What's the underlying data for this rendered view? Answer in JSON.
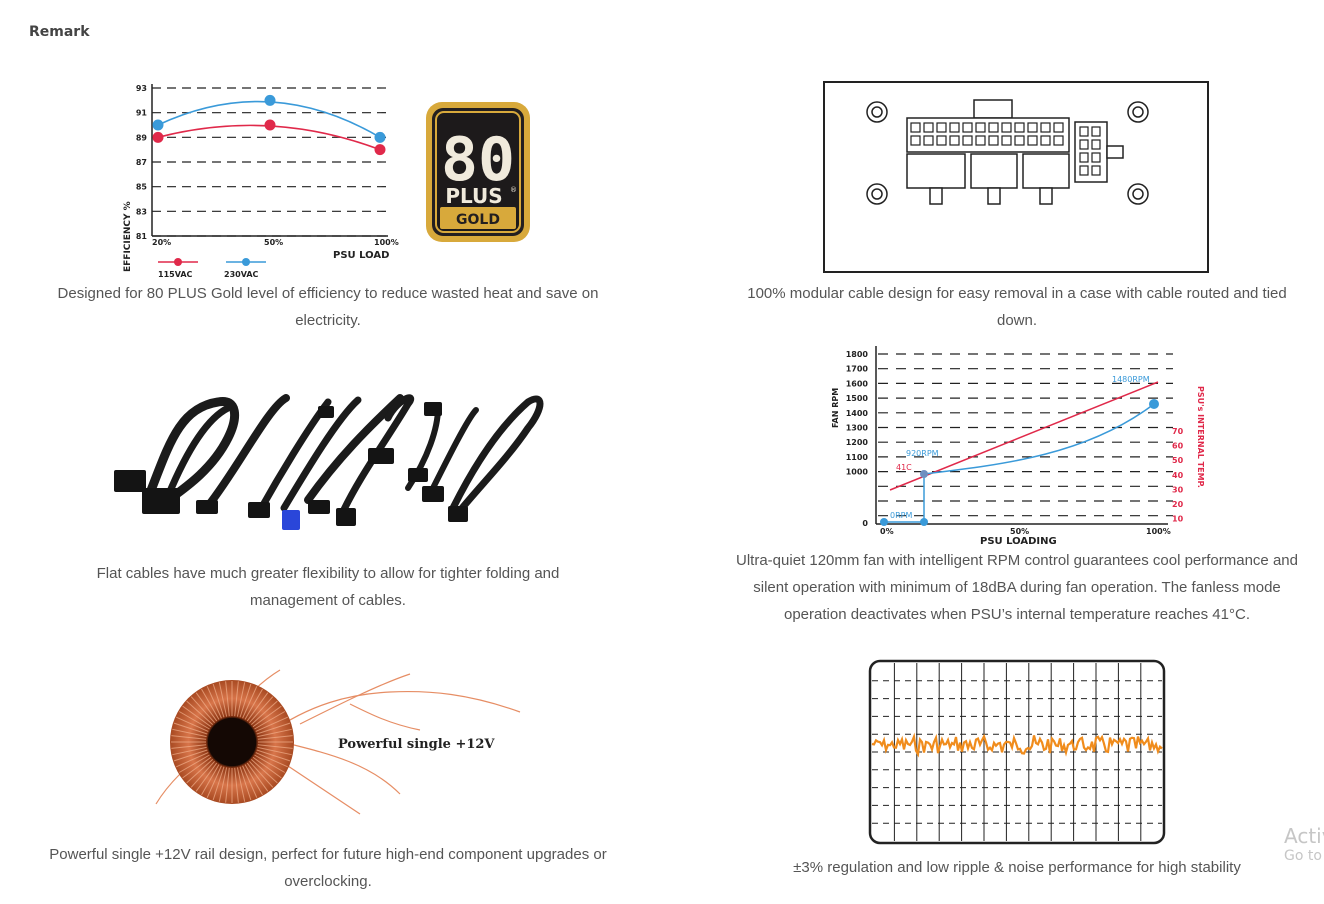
{
  "page": {
    "heading": "Remark"
  },
  "features": [
    {
      "caption": "Designed for 80 PLUS Gold level of efficiency to reduce wasted heat and save on electricity."
    },
    {
      "caption": "100% modular cable design for easy removal in a case with cable routed and tied down."
    },
    {
      "caption": "Flat cables have much greater flexibility to allow for tighter folding and management of cables."
    },
    {
      "caption": "Ultra-quiet 120mm fan with intelligent RPM control guarantees cool performance and silent operation with minimum of 18dBA during fan operation. The fanless mode operation deactivates when PSU’s internal temperature reaches 41°C."
    },
    {
      "caption": "Powerful single +12V rail design, perfect for future high-end component upgrades or overclocking."
    },
    {
      "caption": "±3% regulation and low ripple & noise performance for high stability"
    }
  ],
  "chart_data": [
    {
      "type": "line",
      "x": [
        "20%",
        "50%",
        "100%"
      ],
      "series": [
        {
          "name": "115VAC",
          "values": [
            89,
            90,
            88
          ],
          "color": "#e0294a"
        },
        {
          "name": "230VAC",
          "values": [
            90,
            92,
            89
          ],
          "color": "#3a9ad9"
        }
      ],
      "yticks": [
        "93",
        "91",
        "89",
        "87",
        "85",
        "83",
        "81"
      ],
      "ylabel": "EFFICIENCY %",
      "xlabel": "PSU LOAD",
      "ylim": [
        81,
        93
      ],
      "legend": "bottom-left",
      "grid": true
    },
    {
      "type": "line",
      "x_ticks": [
        "0%",
        "50%",
        "100%"
      ],
      "xlabel": "PSU LOADING",
      "ylabel": "FAN RPM",
      "ylabel_right": "PSU's INTERNAL TEMP.",
      "yticks": [
        "1800",
        "1700",
        "1600",
        "1500",
        "1400",
        "1300",
        "1200",
        "1100",
        "1000",
        "0"
      ],
      "yticks_right": [
        "70",
        "60",
        "50",
        "40",
        "30",
        "20",
        "10"
      ],
      "annotations": [
        "1480RPM",
        "920RPM",
        "41C",
        "0RPM"
      ],
      "grid": true
    }
  ],
  "badge": {
    "number": "80",
    "plus": "PLUS",
    "tier": "GOLD",
    "registered": "®"
  },
  "coil_text": "Powerful single +12V",
  "watermark": {
    "line1": "Activate Windows",
    "line2": "Go to Settings to activate Windows."
  }
}
